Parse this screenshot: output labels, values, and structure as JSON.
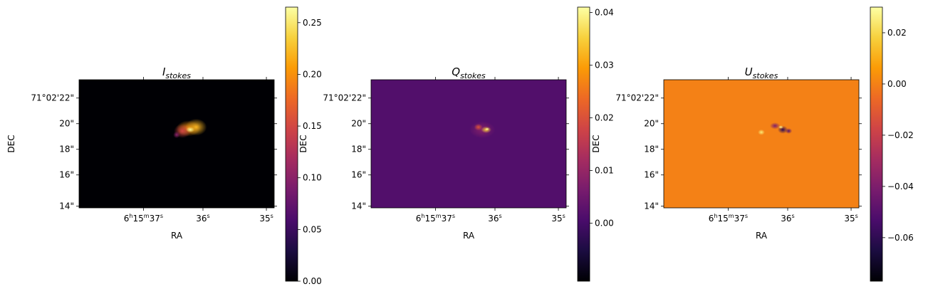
{
  "figure": {
    "background": "#ffffff",
    "colormap": "inferno",
    "colormap_stops": [
      "#000004",
      "#1b0c41",
      "#4a0c6b",
      "#781c6d",
      "#a52c60",
      "#cf4446",
      "#ed6925",
      "#fb9b06",
      "#f7d13d",
      "#fcffa4"
    ]
  },
  "chart_data": [
    {
      "type": "heatmap",
      "panel": "I",
      "title_main": "I",
      "title_sub": "stokes",
      "xlabel": "RA",
      "ylabel": "DEC",
      "x_ticks": [
        {
          "h": "6",
          "m": "15",
          "s": "37",
          "full": true
        },
        {
          "s": "36",
          "full": false
        },
        {
          "s": "35",
          "full": false
        }
      ],
      "y_ticks": [
        "71°02'22\"",
        "20\"",
        "18\"",
        "16\"",
        "14\""
      ],
      "background_value": 0.0,
      "colorbar": {
        "vmin": 0.0,
        "vmax": 0.265,
        "ticks": [
          "0.00",
          "0.05",
          "0.10",
          "0.15",
          "0.20",
          "0.25"
        ],
        "tick_values": [
          0.0,
          0.05,
          0.1,
          0.15,
          0.2,
          0.25
        ]
      },
      "features": [
        {
          "x": 0.56,
          "y": 0.38,
          "rx": 0.028,
          "ry": 0.028,
          "value": 0.2
        },
        {
          "x": 0.53,
          "y": 0.4,
          "rx": 0.02,
          "ry": 0.025,
          "value": 0.15
        },
        {
          "x": 0.6,
          "y": 0.37,
          "rx": 0.025,
          "ry": 0.03,
          "value": 0.22
        },
        {
          "x": 0.57,
          "y": 0.39,
          "rx": 0.01,
          "ry": 0.01,
          "value": 0.26
        },
        {
          "x": 0.5,
          "y": 0.43,
          "rx": 0.008,
          "ry": 0.012,
          "value": 0.1
        }
      ]
    },
    {
      "type": "heatmap",
      "panel": "Q",
      "title_main": "Q",
      "title_sub": "stokes",
      "xlabel": "RA",
      "ylabel": "DEC",
      "x_ticks": [
        {
          "h": "6",
          "m": "15",
          "s": "37",
          "full": true
        },
        {
          "s": "36",
          "full": false
        },
        {
          "s": "35",
          "full": false
        }
      ],
      "y_ticks": [
        "71°02'22\"",
        "20\"",
        "18\"",
        "16\"",
        "14\""
      ],
      "background_value": 0.0015,
      "colorbar": {
        "vmin": -0.011,
        "vmax": 0.041,
        "ticks": [
          "0.00",
          "0.01",
          "0.02",
          "0.03",
          "0.04"
        ],
        "tick_values": [
          0.0,
          0.01,
          0.02,
          0.03,
          0.04
        ]
      },
      "features": [
        {
          "x": 0.57,
          "y": 0.39,
          "rx": 0.03,
          "ry": 0.03,
          "value": 0.008
        },
        {
          "x": 0.55,
          "y": 0.37,
          "rx": 0.01,
          "ry": 0.012,
          "value": 0.02
        },
        {
          "x": 0.59,
          "y": 0.39,
          "rx": 0.012,
          "ry": 0.012,
          "value": 0.035
        },
        {
          "x": 0.595,
          "y": 0.385,
          "rx": 0.005,
          "ry": 0.005,
          "value": 0.041
        }
      ]
    },
    {
      "type": "heatmap",
      "panel": "U",
      "title_main": "U",
      "title_sub": "stokes",
      "xlabel": "RA",
      "ylabel": "DEC",
      "x_ticks": [
        {
          "h": "6",
          "m": "15",
          "s": "37",
          "full": true
        },
        {
          "s": "36",
          "full": false
        },
        {
          "s": "35",
          "full": false
        }
      ],
      "y_ticks": [
        "71°02'22\"",
        "20\"",
        "18\"",
        "16\"",
        "14\""
      ],
      "background_value": 0.0,
      "colorbar": {
        "vmin": -0.077,
        "vmax": 0.03,
        "ticks": [
          "0.02",
          "0.00",
          "−0.02",
          "−0.04",
          "−0.06"
        ],
        "tick_values": [
          0.02,
          0.0,
          -0.02,
          -0.04,
          -0.06
        ]
      },
      "features": [
        {
          "x": 0.57,
          "y": 0.36,
          "rx": 0.012,
          "ry": 0.012,
          "value": -0.04
        },
        {
          "x": 0.61,
          "y": 0.39,
          "rx": 0.012,
          "ry": 0.014,
          "value": -0.06
        },
        {
          "x": 0.5,
          "y": 0.41,
          "rx": 0.008,
          "ry": 0.01,
          "value": 0.025
        },
        {
          "x": 0.6,
          "y": 0.37,
          "rx": 0.006,
          "ry": 0.006,
          "value": 0.028
        },
        {
          "x": 0.64,
          "y": 0.4,
          "rx": 0.008,
          "ry": 0.01,
          "value": -0.05
        }
      ]
    }
  ]
}
